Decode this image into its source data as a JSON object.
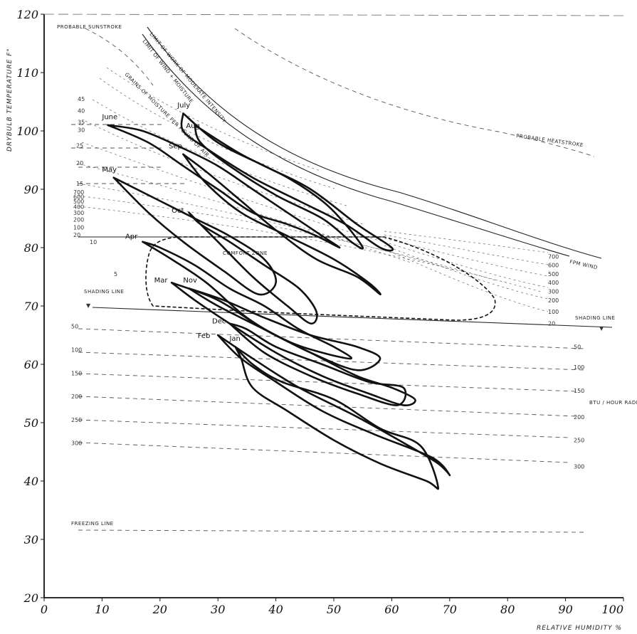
{
  "chart_data": {
    "type": "line",
    "xlabel": "RELATIVE HUMIDITY %",
    "ylabel": "DRYBULB TEMPERATURE F°",
    "xlim": [
      0,
      100
    ],
    "ylim": [
      20,
      120
    ],
    "x_ticks": [
      "0",
      "10",
      "20",
      "30",
      "40",
      "50",
      "60",
      "70",
      "80",
      "90",
      "100"
    ],
    "y_ticks": [
      "20",
      "30",
      "40",
      "50",
      "60",
      "70",
      "80",
      "90",
      "100",
      "110",
      "120"
    ],
    "grid": false,
    "annotations": {
      "sunstroke": "PROBABLE SUNSTROKE",
      "heatstroke": "PROBABLE HEATSTROKE",
      "limit_moderate": "LIMIT OF WORK OF MODERATE INTENSITY",
      "limit_wind": "LIMIT OF WIND + MOISTURE",
      "grains": "GRAINS OF MOISTURE PER POUND OF AIR",
      "comfort": "COMFORT ZONE",
      "shading_left": "SHADING LINE",
      "shading_right": "SHADING LINE",
      "freezing": "FREEZING LINE",
      "radiation": "BTU / HOUR RADIATION",
      "wind": "FPM WIND"
    },
    "left_wind_labels": [
      "700",
      "600",
      "500",
      "400",
      "300",
      "200",
      "100",
      "20"
    ],
    "moisture_labels": [
      "45",
      "40",
      "35",
      "30",
      "25",
      "20",
      "15",
      "10",
      "5"
    ],
    "radiation_labels_left": [
      "50",
      "100",
      "150",
      "200",
      "250",
      "300"
    ],
    "radiation_labels_right": [
      "50",
      "100",
      "150",
      "200",
      "250",
      "300"
    ],
    "wind_labels_right": [
      "700",
      "600",
      "500",
      "400",
      "300",
      "200",
      "100",
      "20"
    ],
    "series": [
      {
        "name": "Jan",
        "points": [
          [
            33,
            63
          ],
          [
            36,
            60
          ],
          [
            41,
            57
          ],
          [
            50,
            54
          ],
          [
            58,
            49
          ],
          [
            65,
            46
          ],
          [
            68,
            39
          ],
          [
            66,
            40
          ],
          [
            58,
            43
          ],
          [
            50,
            47
          ],
          [
            42,
            52
          ],
          [
            36,
            56
          ],
          [
            34,
            61
          ],
          [
            33,
            63
          ]
        ]
      },
      {
        "name": "Feb",
        "points": [
          [
            30,
            65
          ],
          [
            36,
            61
          ],
          [
            44,
            56
          ],
          [
            54,
            51
          ],
          [
            63,
            46
          ],
          [
            68,
            43
          ],
          [
            70,
            41
          ],
          [
            67,
            44
          ],
          [
            57,
            48
          ],
          [
            48,
            52
          ],
          [
            40,
            57
          ],
          [
            34,
            61
          ],
          [
            30,
            65
          ]
        ]
      },
      {
        "name": "Mar",
        "points": [
          [
            22,
            74
          ],
          [
            30,
            71
          ],
          [
            38,
            66
          ],
          [
            46,
            62
          ],
          [
            54,
            58
          ],
          [
            60,
            56
          ],
          [
            64,
            54
          ],
          [
            62,
            53
          ],
          [
            56,
            55
          ],
          [
            48,
            58
          ],
          [
            40,
            62
          ],
          [
            32,
            67
          ],
          [
            26,
            71
          ],
          [
            22,
            74
          ]
        ]
      },
      {
        "name": "Apr",
        "points": [
          [
            17,
            81
          ],
          [
            22,
            78
          ],
          [
            28,
            74
          ],
          [
            35,
            68
          ],
          [
            42,
            64
          ],
          [
            48,
            62
          ],
          [
            53,
            61
          ],
          [
            50,
            63
          ],
          [
            44,
            66
          ],
          [
            38,
            70
          ],
          [
            32,
            73
          ],
          [
            26,
            77
          ],
          [
            20,
            80
          ],
          [
            17,
            81
          ]
        ]
      },
      {
        "name": "May",
        "points": [
          [
            12,
            92
          ],
          [
            18,
            86
          ],
          [
            24,
            81
          ],
          [
            31,
            76
          ],
          [
            37,
            72
          ],
          [
            40,
            74
          ],
          [
            38,
            78
          ],
          [
            32,
            82
          ],
          [
            26,
            85
          ],
          [
            20,
            88
          ],
          [
            14,
            91
          ],
          [
            12,
            92
          ]
        ]
      },
      {
        "name": "June",
        "points": [
          [
            11,
            101
          ],
          [
            18,
            98
          ],
          [
            24,
            94
          ],
          [
            30,
            90
          ],
          [
            36,
            86
          ],
          [
            42,
            84
          ],
          [
            47,
            82
          ],
          [
            51,
            80
          ],
          [
            48,
            82
          ],
          [
            42,
            86
          ],
          [
            36,
            90
          ],
          [
            30,
            94
          ],
          [
            24,
            97
          ],
          [
            17,
            100
          ],
          [
            11,
            101
          ]
        ]
      },
      {
        "name": "July",
        "points": [
          [
            24,
            103
          ],
          [
            30,
            98
          ],
          [
            38,
            94
          ],
          [
            46,
            90
          ],
          [
            54,
            84
          ],
          [
            60,
            80
          ],
          [
            58,
            80
          ],
          [
            52,
            84
          ],
          [
            44,
            88
          ],
          [
            36,
            92
          ],
          [
            28,
            97
          ],
          [
            24,
            100
          ],
          [
            24,
            103
          ]
        ]
      },
      {
        "name": "Aug",
        "points": [
          [
            26,
            101
          ],
          [
            34,
            96
          ],
          [
            42,
            92
          ],
          [
            48,
            88
          ],
          [
            52,
            84
          ],
          [
            55,
            80
          ],
          [
            53,
            81
          ],
          [
            48,
            85
          ],
          [
            40,
            89
          ],
          [
            32,
            94
          ],
          [
            27,
            98
          ],
          [
            26,
            101
          ]
        ]
      },
      {
        "name": "Sep",
        "points": [
          [
            24,
            96
          ],
          [
            28,
            93
          ],
          [
            34,
            88
          ],
          [
            40,
            83
          ],
          [
            47,
            78
          ],
          [
            54,
            75
          ],
          [
            58,
            72
          ],
          [
            56,
            74
          ],
          [
            50,
            78
          ],
          [
            42,
            82
          ],
          [
            34,
            86
          ],
          [
            28,
            91
          ],
          [
            24,
            96
          ]
        ]
      },
      {
        "name": "Oct",
        "points": [
          [
            25,
            86
          ],
          [
            30,
            81
          ],
          [
            36,
            75
          ],
          [
            42,
            70
          ],
          [
            46,
            67
          ],
          [
            47,
            69
          ],
          [
            44,
            73
          ],
          [
            38,
            77
          ],
          [
            32,
            81
          ],
          [
            27,
            84
          ],
          [
            25,
            86
          ]
        ]
      },
      {
        "name": "Nov",
        "points": [
          [
            25,
            73
          ],
          [
            30,
            70
          ],
          [
            38,
            66
          ],
          [
            46,
            62
          ],
          [
            54,
            59
          ],
          [
            58,
            61
          ],
          [
            54,
            63
          ],
          [
            46,
            65
          ],
          [
            38,
            68
          ],
          [
            31,
            71
          ],
          [
            25,
            73
          ]
        ]
      },
      {
        "name": "Dec",
        "points": [
          [
            32,
            67
          ],
          [
            38,
            62
          ],
          [
            46,
            58
          ],
          [
            54,
            55
          ],
          [
            61,
            53
          ],
          [
            62,
            56
          ],
          [
            56,
            57
          ],
          [
            48,
            60
          ],
          [
            40,
            63
          ],
          [
            35,
            66
          ],
          [
            32,
            67
          ]
        ]
      }
    ],
    "month_labels": {
      "July": [
        23,
        104
      ],
      "Aug": [
        24.5,
        100.5
      ],
      "June": [
        10,
        102
      ],
      "Sep": [
        21.5,
        97
      ],
      "May": [
        10,
        93
      ],
      "Oct": [
        22,
        86
      ],
      "Apr": [
        14,
        81.5
      ],
      "Mar": [
        19,
        74
      ],
      "Nov": [
        24,
        74
      ],
      "Dec": [
        29,
        67
      ],
      "Feb": [
        26.5,
        64.5
      ],
      "Jan": [
        32,
        64
      ]
    }
  }
}
